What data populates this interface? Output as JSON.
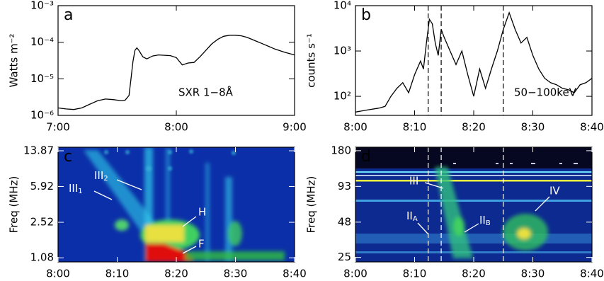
{
  "chart_data": [
    {
      "type": "line",
      "panel_label": "a",
      "y_label": "Watts m⁻²",
      "annotation": "SXR 1−8Å",
      "x": [
        420,
        424,
        428,
        432,
        436,
        440,
        444,
        448,
        452,
        454,
        456,
        457,
        458,
        459,
        460,
        461,
        463,
        465,
        468,
        471,
        474,
        477,
        480,
        483,
        486,
        489,
        492,
        495,
        498,
        501,
        504,
        507,
        510,
        513,
        516,
        520,
        525,
        530,
        535,
        540
      ],
      "values": [
        1.6e-06,
        1.5e-06,
        1.45e-06,
        1.6e-06,
        2e-06,
        2.5e-06,
        2.8e-06,
        2.7e-06,
        2.5e-06,
        2.6e-06,
        3.5e-06,
        1e-05,
        3e-05,
        6e-05,
        7e-05,
        6e-05,
        4e-05,
        3.5e-05,
        4.2e-05,
        4.5e-05,
        4.4e-05,
        4.3e-05,
        3.8e-05,
        2.4e-05,
        2.7e-05,
        2.8e-05,
        4e-05,
        6e-05,
        9e-05,
        0.00012,
        0.000145,
        0.000155,
        0.000155,
        0.00015,
        0.000135,
        0.00011,
        8.5e-05,
        6.5e-05,
        5.3e-05,
        4.5e-05
      ],
      "color": "#000000",
      "xlim": [
        420,
        540
      ],
      "ylim": [
        1e-06,
        0.001
      ],
      "log_y": true,
      "xticks": [
        {
          "value": 420,
          "label": "7:00"
        },
        {
          "value": 480,
          "label": "8:00"
        },
        {
          "value": 540,
          "label": "9:00"
        }
      ],
      "yticks": [
        {
          "value": 1e-06,
          "label": "10⁻⁶"
        },
        {
          "value": 1e-05,
          "label": "10⁻⁵"
        },
        {
          "value": 0.0001,
          "label": "10⁻⁴"
        },
        {
          "value": 0.001,
          "label": "10⁻³"
        }
      ]
    },
    {
      "type": "line",
      "panel_label": "b",
      "y_label": "counts s⁻¹",
      "annotation": "50−100keV",
      "x": [
        480,
        482,
        484,
        485,
        486,
        487,
        488,
        489,
        490,
        491,
        491.5,
        492,
        492.5,
        493,
        493.5,
        494,
        494.5,
        495,
        496,
        497,
        498,
        499,
        500,
        501,
        502,
        503,
        504,
        505,
        506,
        507,
        508,
        509,
        510,
        511,
        512,
        513,
        514,
        515,
        516,
        517,
        518,
        519,
        520
      ],
      "values": [
        45,
        50,
        55,
        60,
        100,
        150,
        200,
        120,
        300,
        600,
        400,
        1500,
        5000,
        4000,
        1500,
        800,
        3000,
        2000,
        1000,
        500,
        1000,
        300,
        100,
        400,
        150,
        400,
        1000,
        3000,
        7000,
        3000,
        1500,
        2000,
        800,
        400,
        250,
        200,
        180,
        150,
        140,
        120,
        180,
        200,
        250
      ],
      "color": "#000000",
      "xlim": [
        480,
        520
      ],
      "ylim": [
        38,
        10000
      ],
      "log_y": true,
      "markers": [
        492.3,
        494.5,
        505
      ],
      "xticks": [
        {
          "value": 480,
          "label": "8:00"
        },
        {
          "value": 490,
          "label": "8:10"
        },
        {
          "value": 500,
          "label": "8:20"
        },
        {
          "value": 510,
          "label": "8:30"
        },
        {
          "value": 520,
          "label": "8:40"
        }
      ],
      "yticks": [
        {
          "value": 100,
          "label": "10²"
        },
        {
          "value": 1000,
          "label": "10³"
        },
        {
          "value": 10000,
          "label": "10⁴"
        }
      ]
    },
    {
      "type": "heatmap",
      "panel_label": "c",
      "y_label": "Freq (MHz)",
      "annotations": [
        {
          "text": "III",
          "sub": "1"
        },
        {
          "text": "III",
          "sub": "2"
        },
        {
          "text": "H"
        },
        {
          "text": "F"
        }
      ],
      "xlim": [
        480,
        520
      ],
      "ylim": [
        0.98,
        15.1
      ],
      "log_y": true,
      "xticks": [
        {
          "value": 480,
          "label": "8:00"
        },
        {
          "value": 490,
          "label": "8:10"
        },
        {
          "value": 500,
          "label": "8:20"
        },
        {
          "value": 510,
          "label": "8:30"
        },
        {
          "value": 520,
          "label": "8:40"
        }
      ],
      "yticks": [
        1.08,
        2.52,
        5.92,
        13.87
      ]
    },
    {
      "type": "heatmap",
      "panel_label": "d",
      "y_label": "Freq (MHz)",
      "annotations": [
        {
          "text": "III"
        },
        {
          "text": "II",
          "sub": "A"
        },
        {
          "text": "II",
          "sub": "B"
        },
        {
          "text": "IV"
        }
      ],
      "xlim": [
        480,
        520
      ],
      "ylim": [
        23,
        192
      ],
      "log_y": true,
      "markers": [
        492.3,
        494.5,
        505
      ],
      "xticks": [
        {
          "value": 480,
          "label": "8:00"
        },
        {
          "value": 490,
          "label": "8:10"
        },
        {
          "value": 500,
          "label": "8:20"
        },
        {
          "value": 510,
          "label": "8:30"
        },
        {
          "value": 520,
          "label": "8:40"
        }
      ],
      "yticks": [
        25,
        48,
        93,
        180
      ]
    }
  ]
}
